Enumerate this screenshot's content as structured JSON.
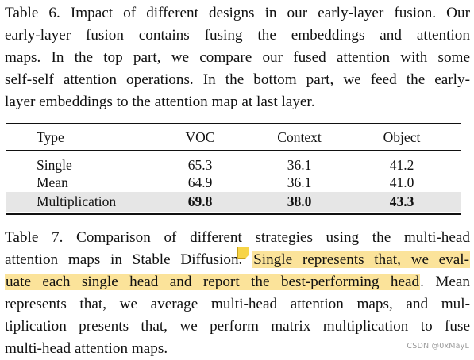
{
  "table6_caption_lines": [
    "Table 6. Impact of different designs in our early-layer fusion. Our",
    "early-layer fusion contains fusing the embeddings and attention",
    "maps. In the top part, we compare our fused attention with some",
    "self-self attention operations. In the bottom part, we feed the early-",
    "layer embeddings to the attention map at last layer."
  ],
  "table": {
    "headers": [
      "Type",
      "VOC",
      "Context",
      "Object"
    ],
    "rows": [
      {
        "type": "Single",
        "voc": "65.3",
        "context": "36.1",
        "object": "41.2",
        "bold": false,
        "highlighted": false
      },
      {
        "type": "Mean",
        "voc": "64.9",
        "context": "36.1",
        "object": "41.0",
        "bold": false,
        "highlighted": false
      },
      {
        "type": "Multiplication",
        "voc": "69.8",
        "context": "38.0",
        "object": "43.3",
        "bold": true,
        "highlighted": true
      }
    ]
  },
  "table7_caption": {
    "line1": "Table 7. Comparison of different strategies using the multi-head",
    "line2_plain": "attention maps in Stable Diffusion.",
    "line2_highlight": "Single represents that, we eval-",
    "line3_highlight": "uate each single head and report the best-performing head",
    "line3_plain": ". Mean",
    "line4": "represents that, we average multi-head attention maps, and mul-",
    "line5": "tiplication presents that, we perform matrix multiplication to fuse",
    "line6": "multi-head attention maps."
  },
  "colors": {
    "highlight": "#fbe39a",
    "note_icon": "#f7d447",
    "row_shade": "#e6e6e6"
  },
  "annotation_icon": "sticky-note-icon",
  "watermark": "CSDN @0xMayL"
}
